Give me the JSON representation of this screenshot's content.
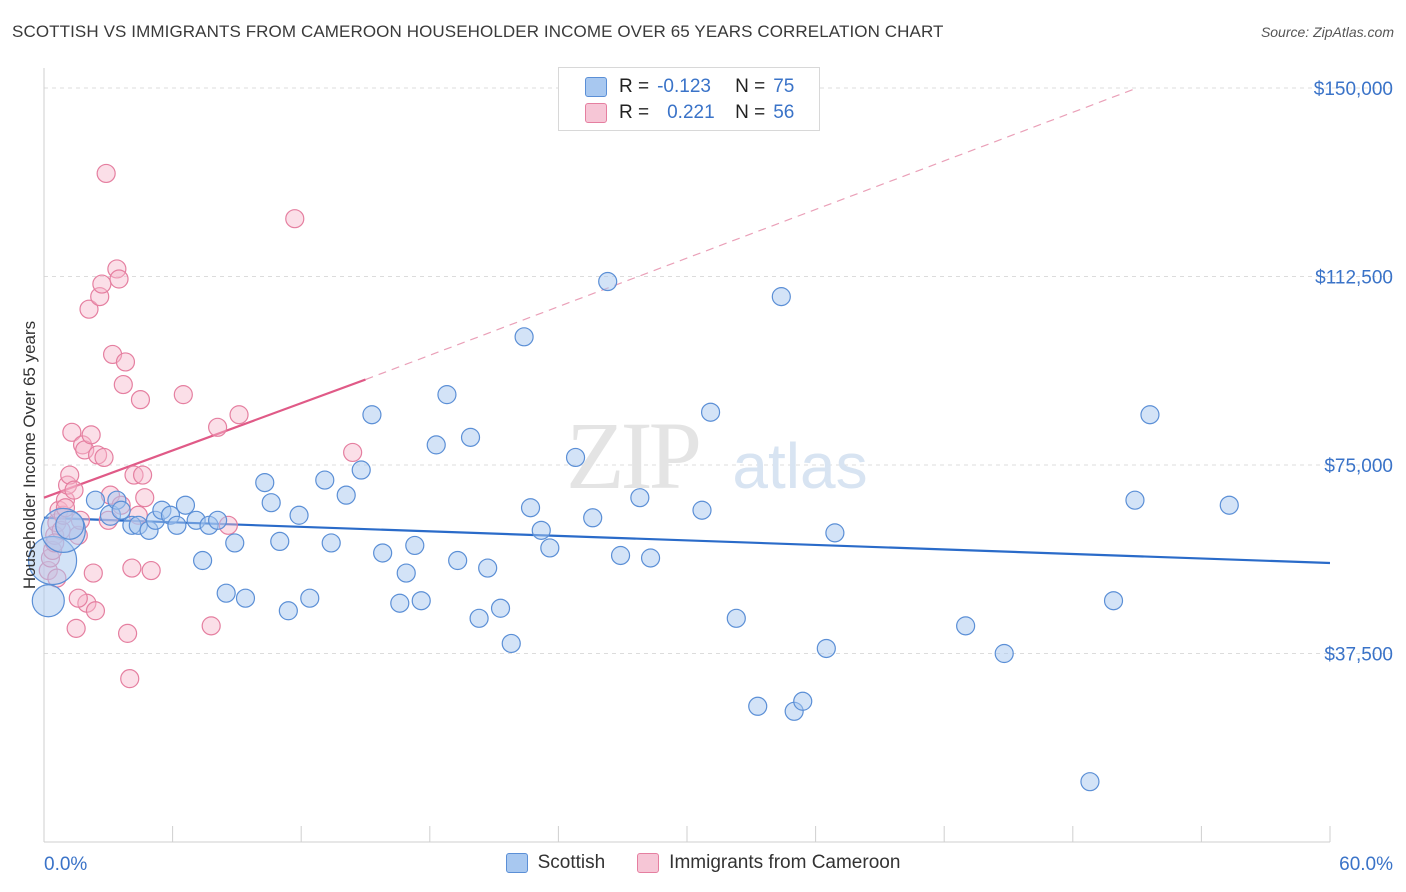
{
  "header": {
    "title": "SCOTTISH VS IMMIGRANTS FROM CAMEROON HOUSEHOLDER INCOME OVER 65 YEARS CORRELATION CHART",
    "source": "Source: ZipAtlas.com"
  },
  "legend_top": {
    "rows": [
      {
        "r_label": "R =",
        "r_value": "-0.123",
        "n_label": "N =",
        "n_value": "75"
      },
      {
        "r_label": "R =",
        "r_value": "0.221",
        "n_label": "N =",
        "n_value": "56"
      }
    ]
  },
  "colors": {
    "scottish_fill": "#a8c8f0",
    "scottish_stroke": "#5b8fd6",
    "scottish_line": "#2a6bc9",
    "cameroon_fill": "#f6b9cc",
    "cameroon_stroke": "#e57fa0",
    "cameroon_line": "#e05a87",
    "tick_label": "#3a73c8",
    "grid": "#dcdcdc"
  },
  "chart_data": {
    "type": "scatter",
    "title": "SCOTTISH VS IMMIGRANTS FROM CAMEROON HOUSEHOLDER INCOME OVER 65 YEARS CORRELATION CHART",
    "xlabel": "",
    "ylabel": "Householder Income Over 65 years",
    "xlim": [
      0,
      60
    ],
    "ylim": [
      0,
      155000
    ],
    "x_tick_labels": [
      "0.0%",
      "60.0%"
    ],
    "y_ticks": [
      37500,
      75000,
      112500,
      150000
    ],
    "y_tick_labels": [
      "$37,500",
      "$75,000",
      "$112,500",
      "$150,000"
    ],
    "grid": true,
    "legend_position": "bottom-center",
    "watermark": "ZIPatlas",
    "series": [
      {
        "name": "Scottish",
        "r": -0.123,
        "n": 75,
        "trend": {
          "x": [
            0,
            60
          ],
          "y": [
            64500,
            55500
          ],
          "style": "solid"
        },
        "points": [
          [
            0.2,
            48000,
            16
          ],
          [
            0.4,
            56000,
            24
          ],
          [
            0.9,
            62000,
            22
          ],
          [
            1.2,
            63000,
            14
          ],
          [
            2.4,
            68000,
            9
          ],
          [
            3.1,
            65000,
            10
          ],
          [
            3.4,
            68000,
            9
          ],
          [
            3.6,
            66000,
            9
          ],
          [
            4.1,
            63000,
            9
          ],
          [
            4.4,
            63000,
            9
          ],
          [
            4.9,
            62000,
            9
          ],
          [
            5.2,
            64000,
            9
          ],
          [
            5.5,
            66000,
            9
          ],
          [
            5.9,
            65000,
            9
          ],
          [
            6.2,
            63000,
            9
          ],
          [
            6.6,
            67000,
            9
          ],
          [
            7.1,
            64000,
            9
          ],
          [
            7.4,
            56000,
            9
          ],
          [
            7.7,
            63000,
            9
          ],
          [
            8.1,
            64000,
            9
          ],
          [
            8.5,
            49500,
            9
          ],
          [
            8.9,
            59500,
            9
          ],
          [
            9.4,
            48500,
            9
          ],
          [
            10.3,
            71500,
            9
          ],
          [
            10.6,
            67500,
            9
          ],
          [
            11.0,
            59800,
            9
          ],
          [
            11.4,
            46000,
            9
          ],
          [
            11.9,
            65000,
            9
          ],
          [
            12.4,
            48500,
            9
          ],
          [
            13.1,
            72000,
            9
          ],
          [
            13.4,
            59500,
            9
          ],
          [
            14.1,
            69000,
            9
          ],
          [
            14.8,
            74000,
            9
          ],
          [
            15.3,
            85000,
            9
          ],
          [
            15.8,
            57500,
            9
          ],
          [
            16.6,
            47500,
            9
          ],
          [
            16.9,
            53500,
            9
          ],
          [
            17.3,
            59000,
            9
          ],
          [
            17.6,
            48000,
            9
          ],
          [
            18.3,
            79000,
            9
          ],
          [
            18.8,
            89000,
            9
          ],
          [
            19.3,
            56000,
            9
          ],
          [
            19.9,
            80500,
            9
          ],
          [
            20.3,
            44500,
            9
          ],
          [
            20.7,
            54500,
            9
          ],
          [
            21.3,
            46500,
            9
          ],
          [
            21.8,
            39500,
            9
          ],
          [
            22.4,
            100500,
            9
          ],
          [
            22.7,
            66500,
            9
          ],
          [
            23.2,
            62000,
            9
          ],
          [
            23.6,
            58500,
            9
          ],
          [
            24.8,
            76500,
            9
          ],
          [
            25.6,
            64500,
            9
          ],
          [
            26.3,
            111500,
            9
          ],
          [
            26.9,
            57000,
            9
          ],
          [
            27.8,
            68500,
            9
          ],
          [
            28.3,
            56500,
            9
          ],
          [
            30.7,
            66000,
            9
          ],
          [
            31.1,
            85500,
            9
          ],
          [
            32.3,
            44500,
            9
          ],
          [
            33.3,
            27000,
            9
          ],
          [
            34.4,
            108500,
            9
          ],
          [
            35.0,
            26000,
            9
          ],
          [
            35.4,
            28000,
            9
          ],
          [
            36.5,
            38500,
            9
          ],
          [
            36.9,
            61500,
            9
          ],
          [
            43.0,
            43000,
            9
          ],
          [
            44.8,
            37500,
            9
          ],
          [
            48.8,
            12000,
            9
          ],
          [
            49.9,
            48000,
            9
          ],
          [
            50.9,
            68000,
            9
          ],
          [
            51.6,
            85000,
            9
          ],
          [
            55.3,
            67000,
            9
          ]
        ]
      },
      {
        "name": "Immigrants from Cameroon",
        "r": 0.221,
        "n": 56,
        "trend": {
          "x": [
            0,
            15
          ],
          "y": [
            68500,
            92000
          ],
          "style": "solid",
          "extended": {
            "x": [
              15,
              51
            ],
            "y": [
              92000,
              150000
            ],
            "style": "dashed"
          }
        },
        "points": [
          [
            0.2,
            54000,
            9
          ],
          [
            0.3,
            56500,
            9
          ],
          [
            0.4,
            58000,
            9
          ],
          [
            0.5,
            61000,
            9
          ],
          [
            0.6,
            63500,
            9
          ],
          [
            0.7,
            66000,
            9
          ],
          [
            0.8,
            62000,
            9
          ],
          [
            0.9,
            65000,
            9
          ],
          [
            1.0,
            68000,
            9
          ],
          [
            1.1,
            71000,
            9
          ],
          [
            1.2,
            73000,
            9
          ],
          [
            1.3,
            81500,
            9
          ],
          [
            1.4,
            70000,
            9
          ],
          [
            1.5,
            42500,
            9
          ],
          [
            1.6,
            61000,
            9
          ],
          [
            1.7,
            64000,
            9
          ],
          [
            1.8,
            79000,
            9
          ],
          [
            1.9,
            78000,
            9
          ],
          [
            2.0,
            47500,
            9
          ],
          [
            2.1,
            106000,
            9
          ],
          [
            2.2,
            81000,
            9
          ],
          [
            2.3,
            53500,
            9
          ],
          [
            2.4,
            46000,
            9
          ],
          [
            2.5,
            77000,
            9
          ],
          [
            2.6,
            108500,
            9
          ],
          [
            2.7,
            111000,
            9
          ],
          [
            2.8,
            76500,
            9
          ],
          [
            2.9,
            133000,
            9
          ],
          [
            3.0,
            64000,
            9
          ],
          [
            3.1,
            69000,
            9
          ],
          [
            3.2,
            97000,
            9
          ],
          [
            3.4,
            114000,
            9
          ],
          [
            3.5,
            112000,
            9
          ],
          [
            3.6,
            67000,
            9
          ],
          [
            3.7,
            91000,
            9
          ],
          [
            3.8,
            95500,
            9
          ],
          [
            3.9,
            41500,
            9
          ],
          [
            4.0,
            32500,
            9
          ],
          [
            4.1,
            54500,
            9
          ],
          [
            4.2,
            73000,
            9
          ],
          [
            4.4,
            65000,
            9
          ],
          [
            4.5,
            88000,
            9
          ],
          [
            4.6,
            73000,
            9
          ],
          [
            4.7,
            68500,
            9
          ],
          [
            5.0,
            54000,
            9
          ],
          [
            6.5,
            89000,
            9
          ],
          [
            7.8,
            43000,
            9
          ],
          [
            8.1,
            82500,
            9
          ],
          [
            8.6,
            63000,
            9
          ],
          [
            9.1,
            85000,
            9
          ],
          [
            11.7,
            124000,
            9
          ],
          [
            14.4,
            77500,
            9
          ],
          [
            0.5,
            59500,
            9
          ],
          [
            0.6,
            52500,
            9
          ],
          [
            1.0,
            66500,
            9
          ],
          [
            1.6,
            48500,
            9
          ]
        ]
      }
    ]
  }
}
